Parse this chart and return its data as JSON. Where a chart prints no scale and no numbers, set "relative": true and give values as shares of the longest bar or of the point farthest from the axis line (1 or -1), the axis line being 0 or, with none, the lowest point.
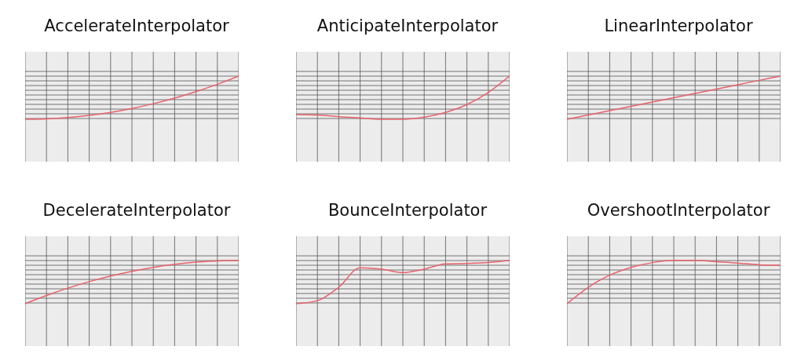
{
  "chart_data": [
    {
      "type": "line",
      "title": "AccelerateInterpolator",
      "relative": true,
      "grid": true,
      "color": "#e8616b",
      "categories": [
        null,
        null,
        null,
        null,
        null,
        null,
        null,
        null,
        null,
        null,
        null
      ],
      "values": [
        0,
        0.01,
        0.04,
        0.09,
        0.16,
        0.25,
        0.36,
        0.49,
        0.64,
        0.81,
        1
      ]
    },
    {
      "type": "line",
      "title": "AnticipateInterpolator",
      "relative": true,
      "grid": true,
      "color": "#e8616b",
      "categories": [
        null,
        null,
        null,
        null,
        null,
        null,
        null,
        null,
        null,
        null,
        null
      ],
      "values": [
        0.11,
        0.1,
        0.06,
        0.03,
        0,
        0,
        0.05,
        0.16,
        0.34,
        0.62,
        1
      ]
    },
    {
      "type": "line",
      "title": "LinearInterpolator",
      "relative": true,
      "grid": true,
      "color": "#e8616b",
      "categories": [
        null,
        null,
        null,
        null,
        null,
        null,
        null,
        null,
        null,
        null,
        null
      ],
      "values": [
        0,
        0.1,
        0.2,
        0.3,
        0.4,
        0.5,
        0.6,
        0.7,
        0.8,
        0.9,
        1
      ]
    },
    {
      "type": "line",
      "title": "DecelerateInterpolator",
      "relative": true,
      "grid": true,
      "color": "#e8616b",
      "categories": [
        null,
        null,
        null,
        null,
        null,
        null,
        null,
        null,
        null,
        null,
        null
      ],
      "values": [
        0,
        0.19,
        0.36,
        0.51,
        0.64,
        0.75,
        0.84,
        0.91,
        0.96,
        0.99,
        1
      ]
    },
    {
      "type": "line",
      "title": "BounceInterpolator",
      "relative": true,
      "grid": true,
      "color": "#e8616b",
      "categories": [
        null,
        null,
        null,
        null,
        null,
        null,
        null,
        null,
        null,
        null,
        null
      ],
      "values": [
        0,
        0.07,
        0.38,
        0.83,
        0.8,
        0.72,
        0.8,
        0.92,
        0.93,
        0.95,
        1
      ]
    },
    {
      "type": "line",
      "title": "OvershootInterpolator",
      "relative": true,
      "grid": true,
      "color": "#e8616b",
      "categories": [
        null,
        null,
        null,
        null,
        null,
        null,
        null,
        null,
        null,
        null,
        null
      ],
      "values": [
        0,
        0.38,
        0.66,
        0.84,
        0.95,
        1,
        1,
        0.97,
        0.94,
        0.9,
        0.89
      ]
    }
  ]
}
